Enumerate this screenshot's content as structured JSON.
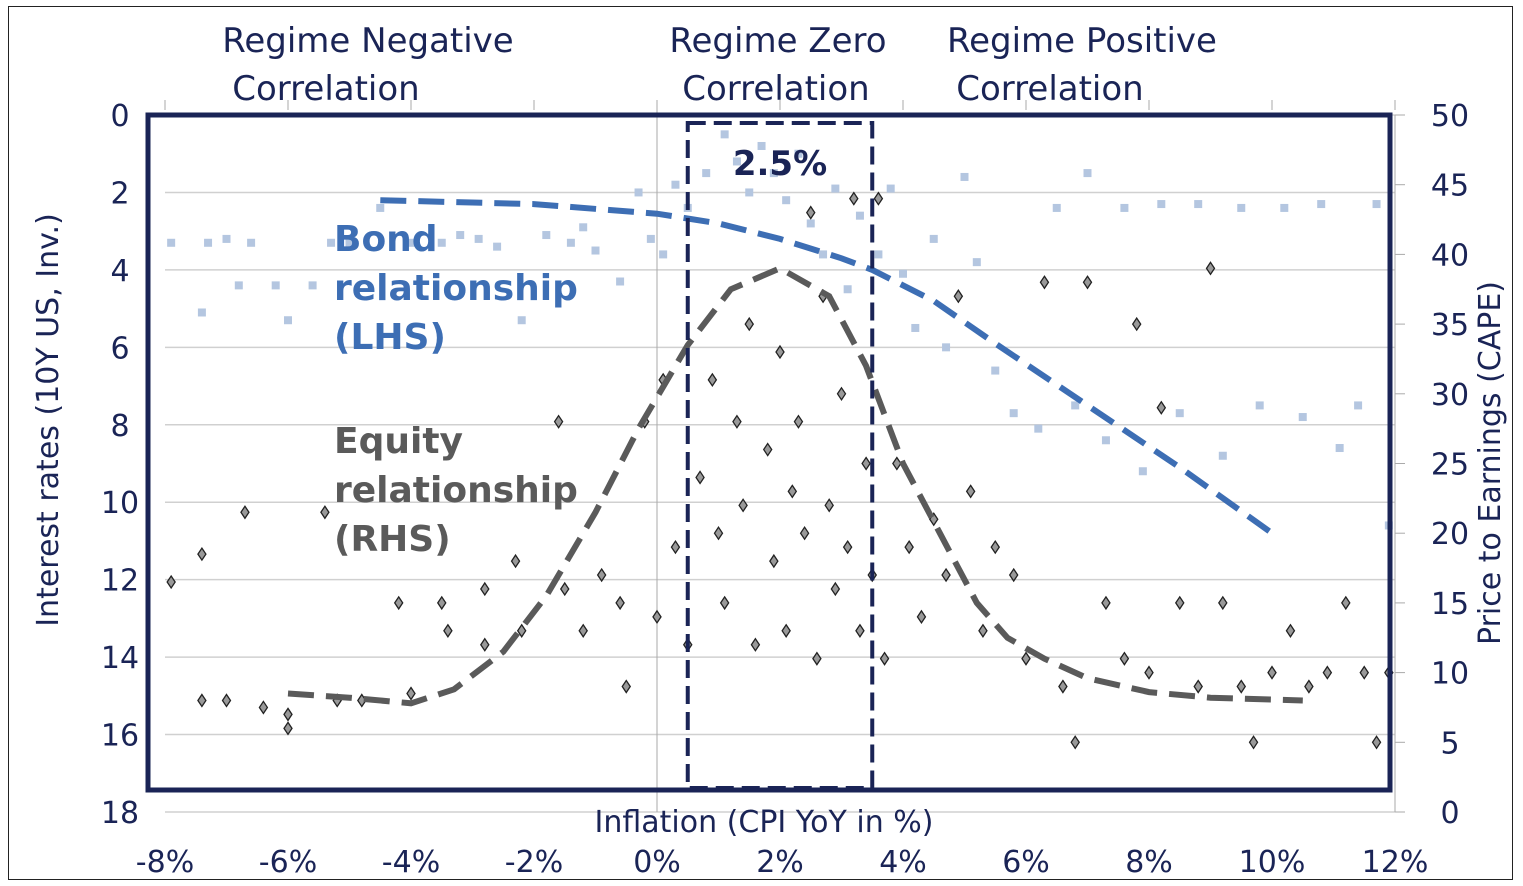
{
  "chart_data": {
    "type": "scatter",
    "xlabel": "Inflation (CPI YoY in %)",
    "ylabel_left": "Interest rates (10Y US, Inv.)",
    "ylabel_right": "Price to Earnings (CAPE)",
    "xlim": [
      -8,
      12
    ],
    "ylim_left": [
      0,
      18
    ],
    "ylim_left_inverted": true,
    "ylim_right": [
      0,
      50
    ],
    "x_ticks": [
      "-8%",
      "-6%",
      "-4%",
      "-2%",
      "0%",
      "2%",
      "4%",
      "6%",
      "8%",
      "10%",
      "12%"
    ],
    "y_left_ticks": [
      "0",
      "2",
      "4",
      "6",
      "8",
      "10",
      "12",
      "14",
      "16",
      "18"
    ],
    "y_right_ticks": [
      "50",
      "45",
      "40",
      "35",
      "30",
      "25",
      "20",
      "15",
      "10",
      "5",
      "0"
    ],
    "grid": "horizontal",
    "regimes": [
      {
        "line1": "Regime Negative",
        "line2": "Correlation"
      },
      {
        "line1": "Regime Zero",
        "line2": "Correlation"
      },
      {
        "line1": "Regime Positive",
        "line2": "Correlation"
      }
    ],
    "zero_regime_box": {
      "x_range": [
        0.5,
        3.5
      ],
      "label": "2.5%"
    },
    "colors": {
      "navy": "#1a2456",
      "bond": "#3d6eb4",
      "bond_points": "#b4c6e0",
      "equity": "#5a5a5a",
      "equity_points": "#222222"
    },
    "series": [
      {
        "name": "Bond relationship (LHS)",
        "label_lines": [
          "Bond",
          "relationship",
          "(LHS)"
        ],
        "axis": "left",
        "marker": "square",
        "points": [
          [
            -7.9,
            3.3
          ],
          [
            -7.4,
            5.1
          ],
          [
            -7.3,
            3.3
          ],
          [
            -7,
            3.2
          ],
          [
            -6.8,
            4.4
          ],
          [
            -6.6,
            3.3
          ],
          [
            -6.2,
            4.4
          ],
          [
            -6,
            5.3
          ],
          [
            -5.6,
            4.4
          ],
          [
            -5.3,
            3.3
          ],
          [
            -5,
            3.3
          ],
          [
            -4.5,
            2.4
          ],
          [
            -4,
            3.3
          ],
          [
            -3.5,
            3.3
          ],
          [
            -3.2,
            3.1
          ],
          [
            -2.9,
            3.2
          ],
          [
            -2.6,
            3.4
          ],
          [
            -2.2,
            5.3
          ],
          [
            -1.8,
            3.1
          ],
          [
            -1.4,
            3.3
          ],
          [
            -1.2,
            2.9
          ],
          [
            -1,
            3.5
          ],
          [
            -0.6,
            4.3
          ],
          [
            -0.3,
            2.0
          ],
          [
            -0.1,
            3.2
          ],
          [
            0.1,
            3.6
          ],
          [
            0.3,
            1.8
          ],
          [
            0.5,
            2.4
          ],
          [
            0.8,
            1.5
          ],
          [
            1.1,
            0.5
          ],
          [
            1.3,
            1.2
          ],
          [
            1.5,
            2.0
          ],
          [
            1.7,
            0.8
          ],
          [
            1.9,
            1.5
          ],
          [
            2.1,
            2.2
          ],
          [
            2.3,
            1.0
          ],
          [
            2.5,
            2.8
          ],
          [
            2.7,
            3.6
          ],
          [
            2.9,
            1.9
          ],
          [
            3.1,
            4.5
          ],
          [
            3.3,
            2.6
          ],
          [
            3.6,
            3.6
          ],
          [
            3.8,
            1.9
          ],
          [
            4,
            4.1
          ],
          [
            4.2,
            5.5
          ],
          [
            4.5,
            3.2
          ],
          [
            4.7,
            6.0
          ],
          [
            5,
            1.6
          ],
          [
            5.2,
            3.8
          ],
          [
            5.5,
            6.6
          ],
          [
            5.8,
            7.7
          ],
          [
            6.2,
            8.1
          ],
          [
            6.5,
            2.4
          ],
          [
            6.8,
            7.5
          ],
          [
            7,
            1.5
          ],
          [
            7.3,
            8.4
          ],
          [
            7.6,
            2.4
          ],
          [
            7.9,
            9.2
          ],
          [
            8.2,
            2.3
          ],
          [
            8.5,
            7.7
          ],
          [
            8.8,
            2.3
          ],
          [
            9.2,
            8.8
          ],
          [
            9.5,
            2.4
          ],
          [
            9.8,
            7.5
          ],
          [
            10.2,
            2.4
          ],
          [
            10.5,
            7.8
          ],
          [
            10.8,
            2.3
          ],
          [
            11.1,
            8.6
          ],
          [
            11.4,
            7.5
          ],
          [
            11.7,
            2.3
          ],
          [
            11.9,
            10.6
          ]
        ]
      },
      {
        "name": "Equity relationship (RHS)",
        "label_lines": [
          "Equity",
          "relationship",
          "(RHS)"
        ],
        "axis": "right",
        "marker": "diamond",
        "points": [
          [
            -7.9,
            16.5
          ],
          [
            -7.4,
            8
          ],
          [
            -7.4,
            18.5
          ],
          [
            -7,
            8
          ],
          [
            -6.7,
            21.5
          ],
          [
            -6.4,
            7.5
          ],
          [
            -6,
            6
          ],
          [
            -6,
            7
          ],
          [
            -5.4,
            21.5
          ],
          [
            -5.2,
            8
          ],
          [
            -4.8,
            8
          ],
          [
            -4.2,
            15
          ],
          [
            -4,
            8.5
          ],
          [
            -3.5,
            15
          ],
          [
            -3.4,
            13
          ],
          [
            -2.8,
            12
          ],
          [
            -2.8,
            16
          ],
          [
            -2.3,
            18
          ],
          [
            -2.2,
            13
          ],
          [
            -1.6,
            28
          ],
          [
            -1.5,
            16
          ],
          [
            -1.2,
            13
          ],
          [
            -0.9,
            17
          ],
          [
            -0.6,
            15
          ],
          [
            -0.5,
            9
          ],
          [
            -0.2,
            28
          ],
          [
            0,
            14
          ],
          [
            0.1,
            31
          ],
          [
            0.3,
            19
          ],
          [
            0.5,
            12
          ],
          [
            0.7,
            24
          ],
          [
            0.9,
            31
          ],
          [
            1,
            20
          ],
          [
            1.1,
            15
          ],
          [
            1.3,
            28
          ],
          [
            1.4,
            22
          ],
          [
            1.5,
            35
          ],
          [
            1.6,
            12
          ],
          [
            1.8,
            26
          ],
          [
            1.9,
            18
          ],
          [
            2,
            33
          ],
          [
            2.1,
            13
          ],
          [
            2.2,
            23
          ],
          [
            2.3,
            28
          ],
          [
            2.4,
            20
          ],
          [
            2.5,
            43
          ],
          [
            2.6,
            11
          ],
          [
            2.7,
            37
          ],
          [
            2.8,
            22
          ],
          [
            2.9,
            16
          ],
          [
            3,
            30
          ],
          [
            3.1,
            19
          ],
          [
            3.2,
            44
          ],
          [
            3.3,
            13
          ],
          [
            3.4,
            25
          ],
          [
            3.5,
            17
          ],
          [
            3.6,
            44
          ],
          [
            3.7,
            11
          ],
          [
            3.9,
            25
          ],
          [
            4.1,
            19
          ],
          [
            4.3,
            14
          ],
          [
            4.5,
            21
          ],
          [
            4.7,
            17
          ],
          [
            4.9,
            37
          ],
          [
            5.1,
            23
          ],
          [
            5.3,
            13
          ],
          [
            5.5,
            19
          ],
          [
            5.8,
            17
          ],
          [
            6,
            11
          ],
          [
            6.3,
            38
          ],
          [
            6.6,
            9
          ],
          [
            6.8,
            5
          ],
          [
            7,
            38
          ],
          [
            7.3,
            15
          ],
          [
            7.6,
            11
          ],
          [
            7.8,
            35
          ],
          [
            8,
            10
          ],
          [
            8.2,
            29
          ],
          [
            8.5,
            15
          ],
          [
            8.8,
            9
          ],
          [
            9,
            39
          ],
          [
            9.2,
            15
          ],
          [
            9.5,
            9
          ],
          [
            9.7,
            5
          ],
          [
            10,
            10
          ],
          [
            10.3,
            13
          ],
          [
            10.6,
            9
          ],
          [
            10.9,
            10
          ],
          [
            11.2,
            15
          ],
          [
            11.5,
            10
          ],
          [
            11.7,
            5
          ],
          [
            11.9,
            10
          ]
        ]
      }
    ],
    "trendlines": {
      "bond": [
        [
          -4.5,
          2.2
        ],
        [
          -2,
          2.3
        ],
        [
          0,
          2.55
        ],
        [
          1,
          2.8
        ],
        [
          2,
          3.2
        ],
        [
          3,
          3.7
        ],
        [
          3.5,
          4.0
        ],
        [
          4.5,
          4.8
        ],
        [
          5.5,
          5.9
        ],
        [
          7,
          7.5
        ],
        [
          8.5,
          9.1
        ],
        [
          10,
          10.8
        ]
      ],
      "equity": [
        [
          -6,
          8.5
        ],
        [
          -5,
          8.2
        ],
        [
          -4,
          7.8
        ],
        [
          -3.3,
          8.8
        ],
        [
          -2.5,
          11.5
        ],
        [
          -1.8,
          15.5
        ],
        [
          -1,
          21.5
        ],
        [
          -0.3,
          27.5
        ],
        [
          0.5,
          33.5
        ],
        [
          1.2,
          37.5
        ],
        [
          2,
          39
        ],
        [
          2.8,
          37
        ],
        [
          3.4,
          32
        ],
        [
          4,
          25
        ],
        [
          4.6,
          20
        ],
        [
          5.2,
          15
        ],
        [
          5.7,
          12.5
        ],
        [
          6.3,
          11
        ],
        [
          7,
          9.6
        ],
        [
          8,
          8.6
        ],
        [
          9,
          8.2
        ],
        [
          10.5,
          8
        ]
      ]
    }
  }
}
